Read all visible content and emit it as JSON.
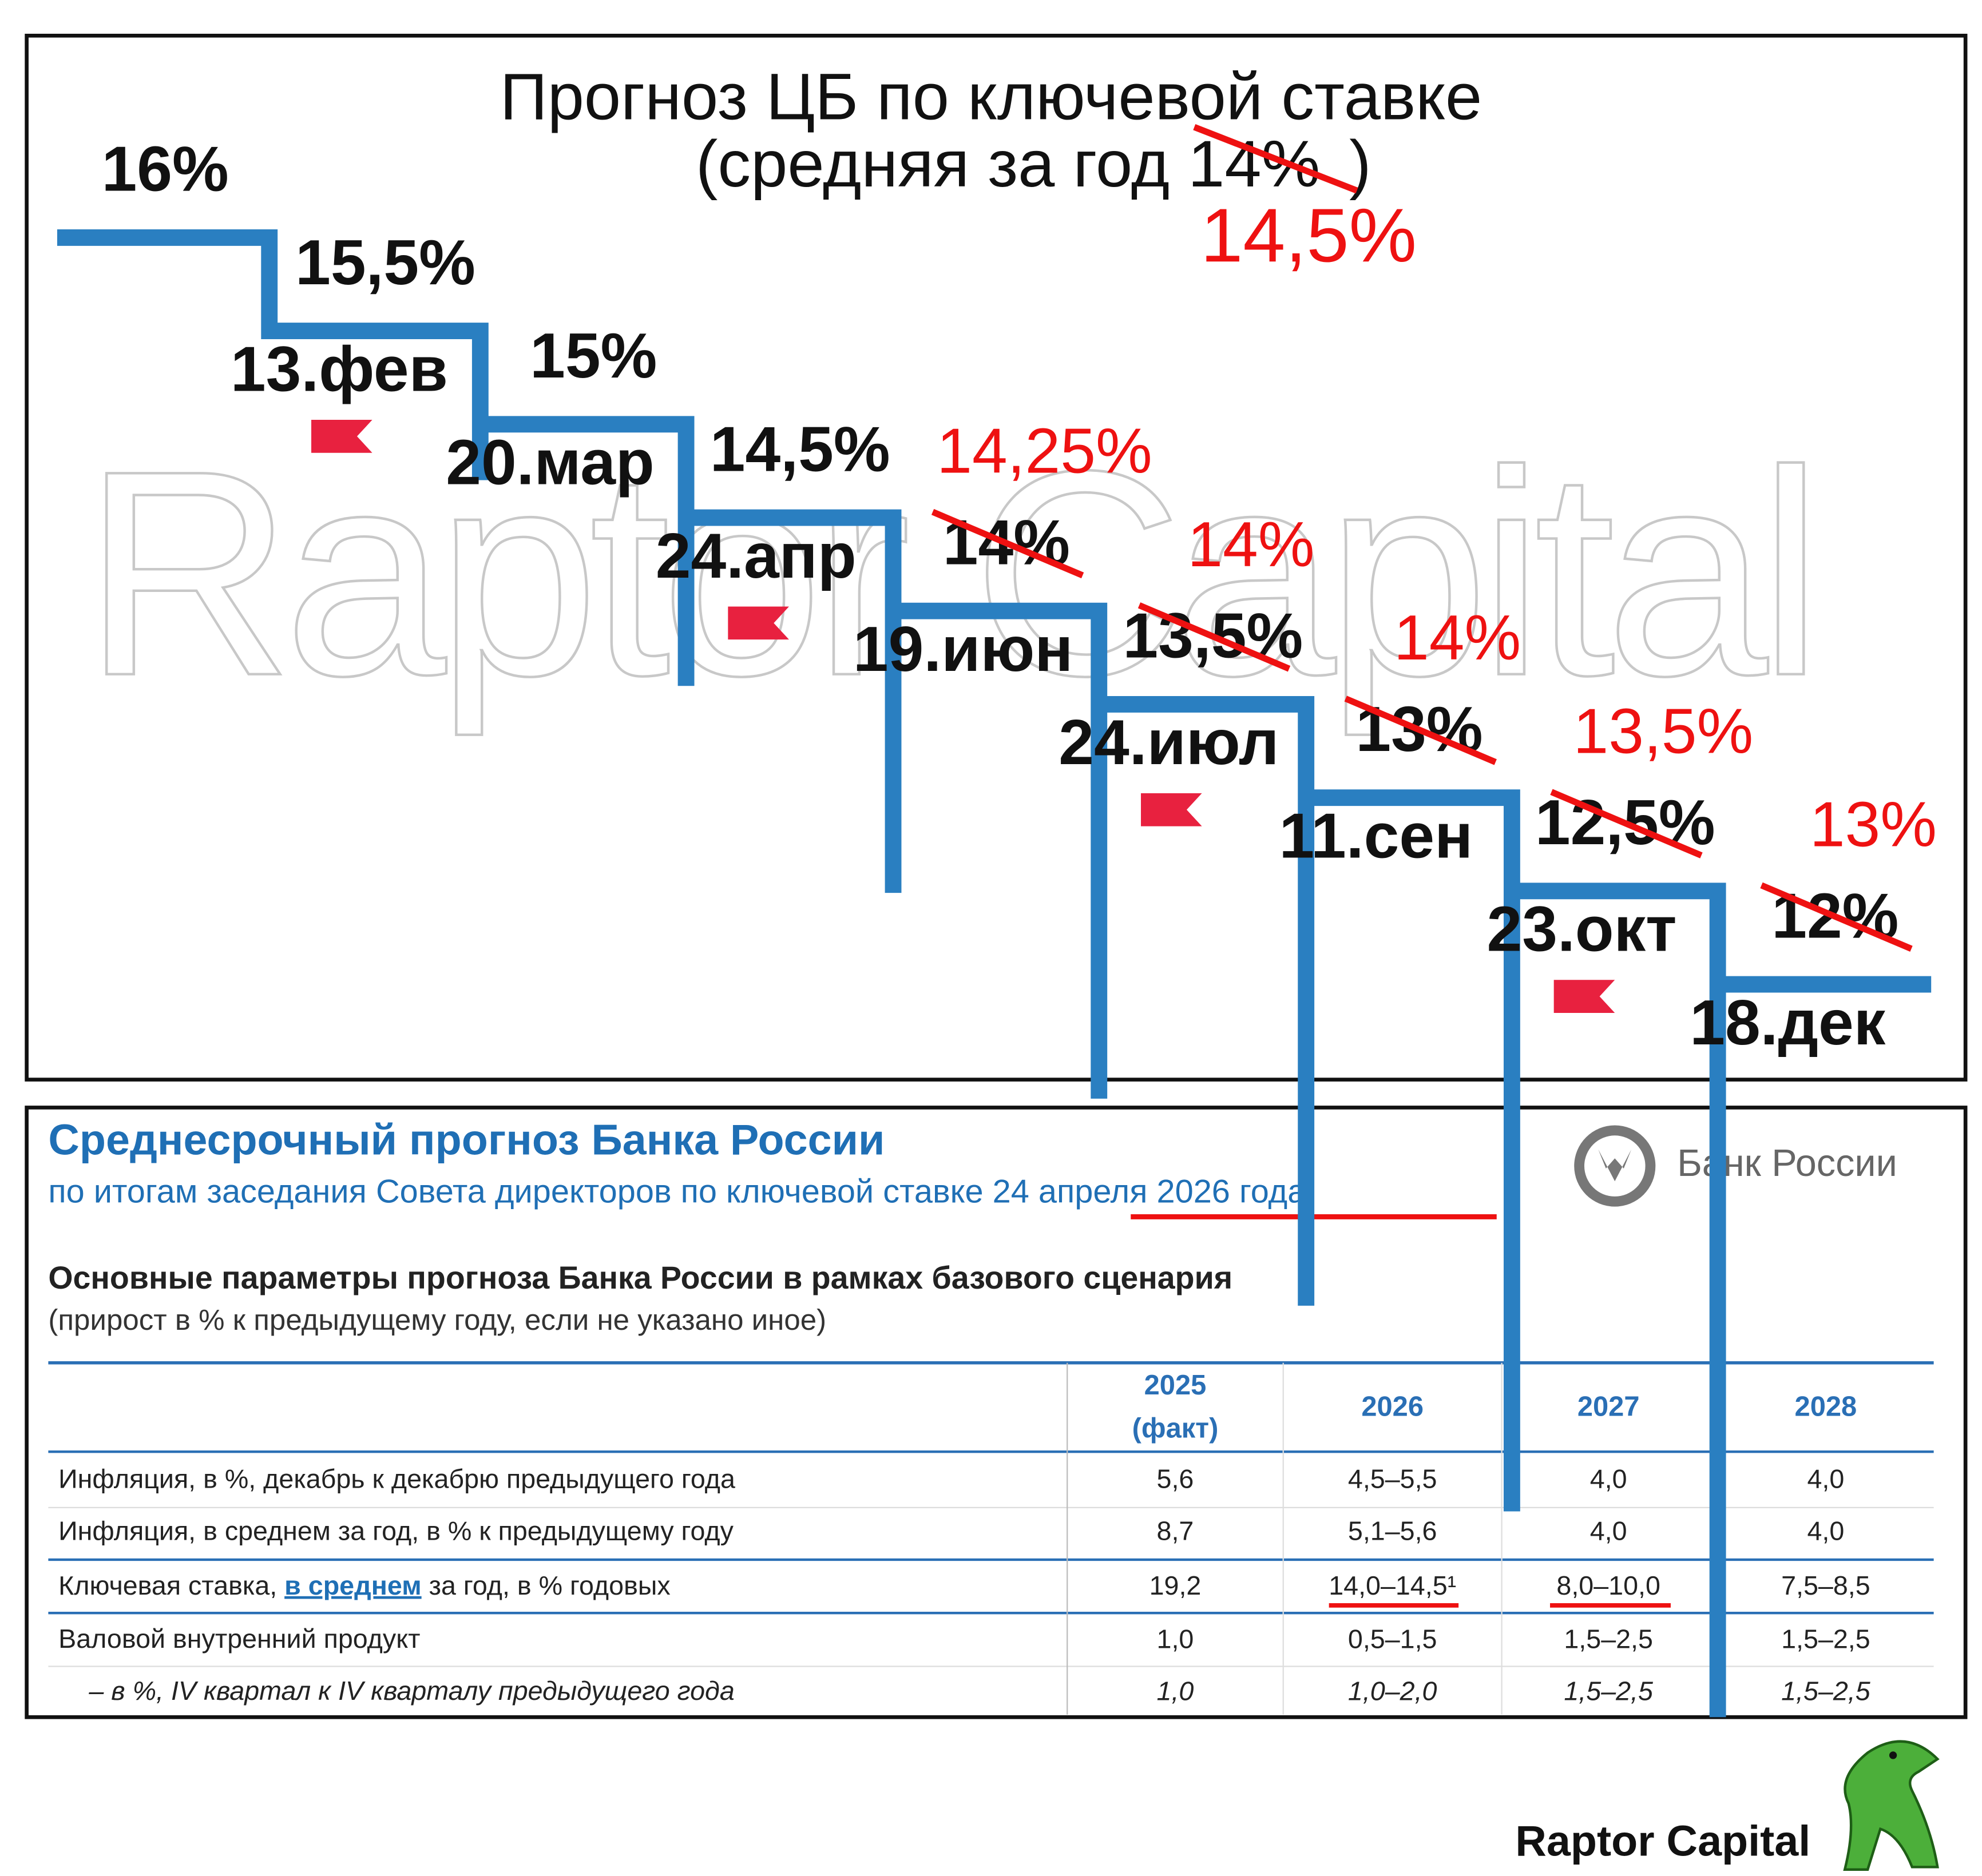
{
  "chart_data": {
    "type": "step",
    "title": "Прогноз ЦБ по ключевой ставке",
    "subtitle_start": "(средняя за год ",
    "subtitle_old": "14%",
    "subtitle_end": ")",
    "subtitle_new": "14,5%",
    "watermark": "Raptor Capital",
    "categories": [
      null,
      "13.фев",
      "20.мар",
      "24.апр",
      "19.июн",
      "24.июл",
      "11.сен",
      "23.окт",
      "18.дек"
    ],
    "values": [
      16,
      15.5,
      15,
      14.5,
      14,
      13.5,
      13,
      12.5,
      12
    ],
    "value_labels": [
      "16%",
      "15,5%",
      "15%",
      "14,5%",
      "14%",
      "13,5%",
      "13%",
      "12,5%",
      "12%"
    ],
    "revised_values": [
      null,
      null,
      null,
      null,
      14.25,
      14,
      14,
      13.5,
      13
    ],
    "revised_value_labels": [
      null,
      null,
      null,
      null,
      "14,25%",
      "14%",
      "14%",
      "13,5%",
      "13%"
    ],
    "color": "#2a7fc1",
    "revised_color": "#ee1111"
  },
  "report": {
    "title": "Среднесрочный прогноз Банка России",
    "subtitle_start": "по итогам заседания Совета директоров по ключевой ставке ",
    "subtitle_date": "24 апреля 2026 года",
    "bank": "Банк России",
    "table_title": "Основные параметры прогноза Банка России в рамках базового сценария",
    "table_note": "(прирост в % к предыдущему году, если не указано иное)",
    "columns": [
      [
        "2025",
        "(факт)"
      ],
      [
        "2026"
      ],
      [
        "2027"
      ],
      [
        "2028"
      ]
    ],
    "rows": [
      {
        "label": [
          "Инфляция, в %, декабрь к декабрю предыдущего года"
        ],
        "cells": [
          "5,6",
          "4,5–5,5",
          "4,0",
          "4,0"
        ]
      },
      {
        "label": [
          "Инфляция, в среднем за год, в % к предыдущему году"
        ],
        "cells": [
          "8,7",
          "5,1–5,6",
          "4,0",
          "4,0"
        ]
      },
      {
        "label": [
          "Ключевая ставка, ",
          "в среднем",
          " за год, в % годовых"
        ],
        "cells": [
          "19,2",
          "14,0–14,5¹",
          "8,0–10,0",
          "7,5–8,5"
        ]
      },
      {
        "label": [
          "Валовой внутренний продукт"
        ],
        "cells": [
          "1,0",
          "0,5–1,5",
          "1,5–2,5",
          "1,5–2,5"
        ]
      },
      {
        "label": [
          "– в %, IV квартал к IV кварталу предыдущего года"
        ],
        "cells": [
          "1,0",
          "1,0–2,0",
          "1,5–2,5",
          "1,5–2,5"
        ]
      }
    ]
  },
  "footer": "Raptor Capital"
}
